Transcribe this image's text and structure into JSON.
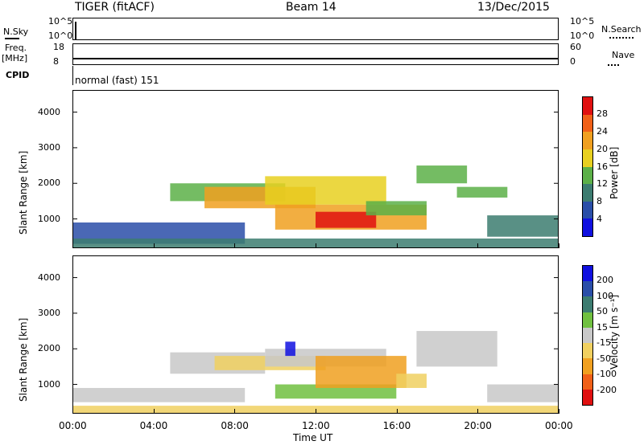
{
  "header": {
    "radar": "TIGER (fitACF)",
    "beam": "Beam 14",
    "date": "13/Dec/2015"
  },
  "top_panels": {
    "nsky_label": "N.Sky",
    "nsky_ticks": [
      "10^5",
      "10^0"
    ],
    "nsearch_label": "N.Search",
    "freq_label_1": "Freq.",
    "freq_label_2": "[MHz]",
    "freq_ticks": [
      "18",
      "8"
    ],
    "nave_ticks": [
      "60",
      "0"
    ],
    "nave_label": "Nave",
    "cpid_label": "CPID",
    "cpid_value": "normal (fast) 151"
  },
  "x_axis": {
    "label": "Time UT",
    "ticks": [
      "00:00",
      "04:00",
      "08:00",
      "12:00",
      "16:00",
      "20:00",
      "00:00"
    ]
  },
  "colors": {
    "power_scale": [
      "#1010e0",
      "#2a4ea8",
      "#3c7c70",
      "#5cb048",
      "#e8d020",
      "#f0a020",
      "#f06018",
      "#e01010"
    ],
    "velocity_scale": [
      "#e01010",
      "#f06018",
      "#f0a020",
      "#f0d060",
      "#c8c8c8",
      "#70c040",
      "#3c7c70",
      "#2a4ea8",
      "#1010e0"
    ]
  },
  "chart_data": [
    {
      "type": "heatmap",
      "title": "",
      "xlabel": "",
      "ylabel": "Slant Range [km]",
      "xlim_hours": [
        0,
        24
      ],
      "ylim_km": [
        200,
        4600
      ],
      "yticks": [
        "4000",
        "3000",
        "2000",
        "1000"
      ],
      "colorbar": {
        "label": "Power [dB]",
        "ticks": [
          "28",
          "24",
          "20",
          "16",
          "12",
          "8",
          "4"
        ],
        "range": [
          0,
          32
        ]
      },
      "regions": [
        {
          "t0": 0.0,
          "t1": 8.5,
          "r0": 300,
          "r1": 900,
          "value": 6
        },
        {
          "t0": 0.0,
          "t1": 24.0,
          "r0": 200,
          "r1": 450,
          "value": 8
        },
        {
          "t0": 4.8,
          "t1": 10.5,
          "r0": 1500,
          "r1": 2000,
          "value": 14
        },
        {
          "t0": 6.5,
          "t1": 12.0,
          "r0": 1300,
          "r1": 1900,
          "value": 20
        },
        {
          "t0": 9.5,
          "t1": 15.5,
          "r0": 1400,
          "r1": 2200,
          "value": 18
        },
        {
          "t0": 10.0,
          "t1": 17.5,
          "r0": 700,
          "r1": 1400,
          "value": 22
        },
        {
          "t0": 12.0,
          "t1": 15.0,
          "r0": 750,
          "r1": 1200,
          "value": 28
        },
        {
          "t0": 14.5,
          "t1": 17.5,
          "r0": 1100,
          "r1": 1500,
          "value": 12
        },
        {
          "t0": 17.0,
          "t1": 19.5,
          "r0": 2000,
          "r1": 2500,
          "value": 12
        },
        {
          "t0": 19.0,
          "t1": 21.5,
          "r0": 1600,
          "r1": 1900,
          "value": 14
        },
        {
          "t0": 20.5,
          "t1": 24.0,
          "r0": 500,
          "r1": 1100,
          "value": 8
        }
      ]
    },
    {
      "type": "heatmap",
      "title": "",
      "xlabel": "Time UT",
      "ylabel": "Slant Range [km]",
      "xlim_hours": [
        0,
        24
      ],
      "ylim_km": [
        200,
        4600
      ],
      "yticks": [
        "4000",
        "3000",
        "2000",
        "1000"
      ],
      "colorbar": {
        "label": "Velocity [m s⁻¹]",
        "ticks": [
          "200",
          "100",
          "50",
          "15",
          "-15",
          "-50",
          "-100",
          "-200"
        ],
        "range": [
          -250,
          250
        ]
      },
      "regions": [
        {
          "t0": 0.0,
          "t1": 8.5,
          "r0": 500,
          "r1": 900,
          "value": 0
        },
        {
          "t0": 4.8,
          "t1": 9.5,
          "r0": 1300,
          "r1": 1900,
          "value": 0
        },
        {
          "t0": 7.0,
          "t1": 12.5,
          "r0": 1400,
          "r1": 1800,
          "value": -40
        },
        {
          "t0": 9.5,
          "t1": 15.5,
          "r0": 1500,
          "r1": 2000,
          "value": 0
        },
        {
          "t0": 10.0,
          "t1": 16.0,
          "r0": 600,
          "r1": 1000,
          "value": 40
        },
        {
          "t0": 12.0,
          "t1": 16.5,
          "r0": 900,
          "r1": 1800,
          "value": -110
        },
        {
          "t0": 10.5,
          "t1": 11.0,
          "r0": 1800,
          "r1": 2200,
          "value": 200
        },
        {
          "t0": 16.0,
          "t1": 17.5,
          "r0": 900,
          "r1": 1300,
          "value": -40
        },
        {
          "t0": 17.0,
          "t1": 21.0,
          "r0": 1500,
          "r1": 2500,
          "value": 0
        },
        {
          "t0": 20.5,
          "t1": 24.0,
          "r0": 500,
          "r1": 1000,
          "value": 0
        },
        {
          "t0": 0.0,
          "t1": 24.0,
          "r0": 200,
          "r1": 400,
          "value": -30
        }
      ]
    }
  ]
}
